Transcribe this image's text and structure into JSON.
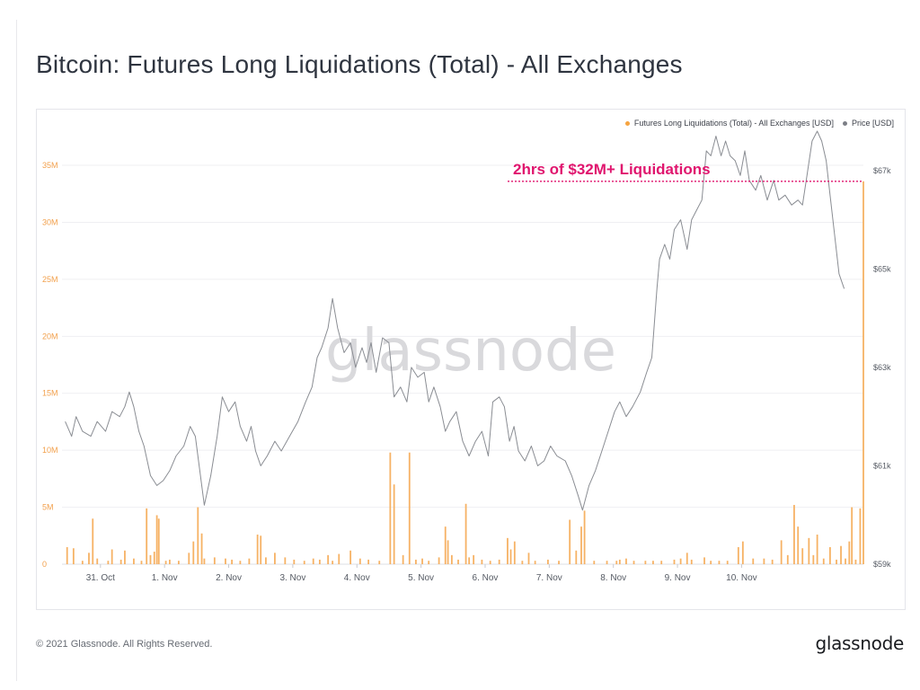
{
  "title": "Bitcoin: Futures Long Liquidations (Total) - All Exchanges",
  "footer": {
    "copyright": "© 2021 Glassnode. All Rights Reserved.",
    "logo": "glassnode"
  },
  "watermark": "glassnode",
  "colors": {
    "bars": "#f6b265",
    "price_line": "#8a8d93",
    "annotation": "#e0156e",
    "legend_liq": "#f6a441",
    "legend_price": "#7c7f86"
  },
  "chart_data": {
    "type": "bar",
    "legend": [
      {
        "name": "Futures Long Liquidations (Total) - All Exchanges [USD]",
        "color": "#f6a441"
      },
      {
        "name": "Price [USD]",
        "color": "#7c7f86"
      }
    ],
    "legend_position": "top-right",
    "annotation": {
      "text": "2hrs of $32M+ Liquidations",
      "value": 33600000
    },
    "x_ticks": [
      "31. Oct",
      "1. Nov",
      "2. Nov",
      "3. Nov",
      "4. Nov",
      "5. Nov",
      "6. Nov",
      "7. Nov",
      "8. Nov",
      "9. Nov",
      "10. Nov"
    ],
    "x_range_days": [
      -1.6,
      10.9
    ],
    "y_left": {
      "ticks": [
        "0",
        "5M",
        "10M",
        "15M",
        "20M",
        "25M",
        "30M",
        "35M"
      ],
      "range": [
        0,
        38000000
      ]
    },
    "y_right": {
      "ticks": [
        "$59k",
        "$61k",
        "$63k",
        "$65k",
        "$67k"
      ],
      "range": [
        59000,
        67800
      ]
    },
    "grid": true,
    "series": [
      {
        "name": "Futures Long Liquidations (Total) - All Exchanges [USD]",
        "type": "bar",
        "points": [
          [
            -1.52,
            1.5
          ],
          [
            -1.42,
            1.4
          ],
          [
            -1.28,
            0.3
          ],
          [
            -1.18,
            1.0
          ],
          [
            -1.12,
            4.0
          ],
          [
            -1.05,
            0.5
          ],
          [
            -0.88,
            0.3
          ],
          [
            -0.82,
            1.3
          ],
          [
            -0.68,
            0.4
          ],
          [
            -0.62,
            1.2
          ],
          [
            -0.48,
            0.5
          ],
          [
            -0.36,
            0.3
          ],
          [
            -0.28,
            4.9
          ],
          [
            -0.22,
            0.8
          ],
          [
            -0.16,
            1.1
          ],
          [
            -0.12,
            4.3
          ],
          [
            -0.09,
            4.0
          ],
          [
            0.02,
            0.3
          ],
          [
            0.08,
            0.4
          ],
          [
            0.22,
            0.3
          ],
          [
            0.38,
            1.0
          ],
          [
            0.45,
            2.0
          ],
          [
            0.52,
            5.0
          ],
          [
            0.58,
            2.7
          ],
          [
            0.62,
            0.5
          ],
          [
            0.78,
            0.6
          ],
          [
            0.95,
            0.5
          ],
          [
            1.05,
            0.4
          ],
          [
            1.18,
            0.3
          ],
          [
            1.32,
            0.5
          ],
          [
            1.45,
            2.6
          ],
          [
            1.5,
            2.5
          ],
          [
            1.58,
            0.6
          ],
          [
            1.72,
            1.0
          ],
          [
            1.88,
            0.6
          ],
          [
            2.02,
            0.4
          ],
          [
            2.18,
            0.3
          ],
          [
            2.32,
            0.5
          ],
          [
            2.42,
            0.4
          ],
          [
            2.55,
            0.8
          ],
          [
            2.62,
            0.3
          ],
          [
            2.72,
            0.9
          ],
          [
            2.9,
            1.2
          ],
          [
            3.05,
            0.5
          ],
          [
            3.18,
            0.4
          ],
          [
            3.35,
            0.3
          ],
          [
            3.52,
            9.8
          ],
          [
            3.58,
            7.0
          ],
          [
            3.72,
            0.8
          ],
          [
            3.82,
            9.8
          ],
          [
            3.92,
            0.4
          ],
          [
            4.02,
            0.5
          ],
          [
            4.12,
            0.3
          ],
          [
            4.28,
            0.6
          ],
          [
            4.38,
            3.3
          ],
          [
            4.42,
            2.1
          ],
          [
            4.48,
            0.8
          ],
          [
            4.58,
            0.4
          ],
          [
            4.7,
            5.3
          ],
          [
            4.75,
            0.6
          ],
          [
            4.82,
            0.8
          ],
          [
            4.95,
            0.4
          ],
          [
            5.08,
            0.3
          ],
          [
            5.22,
            0.4
          ],
          [
            5.35,
            2.3
          ],
          [
            5.4,
            1.3
          ],
          [
            5.46,
            2.0
          ],
          [
            5.58,
            0.3
          ],
          [
            5.68,
            1.0
          ],
          [
            5.78,
            0.3
          ],
          [
            5.98,
            0.4
          ],
          [
            6.15,
            0.3
          ],
          [
            6.32,
            3.9
          ],
          [
            6.42,
            1.2
          ],
          [
            6.5,
            3.3
          ],
          [
            6.55,
            4.7
          ],
          [
            6.7,
            0.3
          ],
          [
            6.9,
            0.3
          ],
          [
            7.05,
            0.3
          ],
          [
            7.1,
            0.4
          ],
          [
            7.2,
            0.5
          ],
          [
            7.32,
            0.3
          ],
          [
            7.5,
            0.3
          ],
          [
            7.62,
            0.3
          ],
          [
            7.75,
            0.3
          ],
          [
            7.95,
            0.4
          ],
          [
            8.05,
            0.5
          ],
          [
            8.15,
            1.0
          ],
          [
            8.22,
            0.4
          ],
          [
            8.42,
            0.6
          ],
          [
            8.52,
            0.3
          ],
          [
            8.65,
            0.3
          ],
          [
            8.78,
            0.3
          ],
          [
            8.95,
            1.5
          ],
          [
            9.02,
            2.0
          ],
          [
            9.18,
            0.5
          ],
          [
            9.35,
            0.5
          ],
          [
            9.48,
            0.4
          ],
          [
            9.62,
            2.1
          ],
          [
            9.72,
            0.8
          ],
          [
            9.82,
            5.2
          ],
          [
            9.88,
            3.3
          ],
          [
            9.95,
            1.4
          ],
          [
            10.05,
            2.3
          ],
          [
            10.12,
            0.8
          ],
          [
            10.18,
            2.6
          ],
          [
            10.28,
            0.5
          ],
          [
            10.38,
            1.5
          ],
          [
            10.48,
            0.4
          ],
          [
            10.55,
            1.6
          ],
          [
            10.62,
            0.5
          ],
          [
            10.68,
            2.0
          ],
          [
            10.72,
            5.0
          ],
          [
            10.78,
            0.4
          ],
          [
            10.85,
            4.9
          ],
          [
            10.9,
            33.6
          ]
        ]
      },
      {
        "name": "Price [USD]",
        "type": "line",
        "points": [
          [
            -1.55,
            61.9
          ],
          [
            -1.45,
            61.6
          ],
          [
            -1.38,
            62.0
          ],
          [
            -1.28,
            61.7
          ],
          [
            -1.15,
            61.6
          ],
          [
            -1.05,
            61.9
          ],
          [
            -0.92,
            61.7
          ],
          [
            -0.82,
            62.1
          ],
          [
            -0.7,
            62.0
          ],
          [
            -0.62,
            62.2
          ],
          [
            -0.55,
            62.5
          ],
          [
            -0.48,
            62.2
          ],
          [
            -0.4,
            61.7
          ],
          [
            -0.32,
            61.4
          ],
          [
            -0.22,
            60.8
          ],
          [
            -0.12,
            60.6
          ],
          [
            -0.02,
            60.7
          ],
          [
            0.08,
            60.9
          ],
          [
            0.18,
            61.2
          ],
          [
            0.3,
            61.4
          ],
          [
            0.4,
            61.8
          ],
          [
            0.48,
            61.6
          ],
          [
            0.55,
            60.9
          ],
          [
            0.62,
            60.2
          ],
          [
            0.72,
            60.8
          ],
          [
            0.82,
            61.6
          ],
          [
            0.9,
            62.4
          ],
          [
            1.0,
            62.1
          ],
          [
            1.1,
            62.3
          ],
          [
            1.18,
            61.8
          ],
          [
            1.28,
            61.5
          ],
          [
            1.35,
            61.8
          ],
          [
            1.42,
            61.3
          ],
          [
            1.5,
            61.0
          ],
          [
            1.6,
            61.2
          ],
          [
            1.72,
            61.5
          ],
          [
            1.82,
            61.3
          ],
          [
            1.95,
            61.6
          ],
          [
            2.08,
            61.9
          ],
          [
            2.2,
            62.3
          ],
          [
            2.3,
            62.6
          ],
          [
            2.38,
            63.2
          ],
          [
            2.45,
            63.4
          ],
          [
            2.55,
            63.8
          ],
          [
            2.62,
            64.4
          ],
          [
            2.7,
            63.8
          ],
          [
            2.8,
            63.3
          ],
          [
            2.9,
            63.5
          ],
          [
            2.98,
            63.0
          ],
          [
            3.08,
            63.4
          ],
          [
            3.15,
            63.1
          ],
          [
            3.22,
            63.5
          ],
          [
            3.3,
            62.9
          ],
          [
            3.4,
            63.6
          ],
          [
            3.5,
            63.5
          ],
          [
            3.58,
            62.4
          ],
          [
            3.68,
            62.6
          ],
          [
            3.78,
            62.3
          ],
          [
            3.85,
            63.0
          ],
          [
            3.95,
            62.8
          ],
          [
            4.05,
            62.9
          ],
          [
            4.12,
            62.3
          ],
          [
            4.2,
            62.6
          ],
          [
            4.3,
            62.2
          ],
          [
            4.38,
            61.7
          ],
          [
            4.45,
            61.9
          ],
          [
            4.55,
            62.1
          ],
          [
            4.65,
            61.5
          ],
          [
            4.75,
            61.2
          ],
          [
            4.85,
            61.5
          ],
          [
            4.95,
            61.7
          ],
          [
            5.05,
            61.2
          ],
          [
            5.12,
            62.3
          ],
          [
            5.22,
            62.4
          ],
          [
            5.3,
            62.2
          ],
          [
            5.38,
            61.5
          ],
          [
            5.45,
            61.8
          ],
          [
            5.52,
            61.3
          ],
          [
            5.62,
            61.1
          ],
          [
            5.72,
            61.4
          ],
          [
            5.82,
            61.0
          ],
          [
            5.92,
            61.1
          ],
          [
            6.02,
            61.4
          ],
          [
            6.12,
            61.2
          ],
          [
            6.25,
            61.1
          ],
          [
            6.35,
            60.8
          ],
          [
            6.45,
            60.4
          ],
          [
            6.52,
            60.1
          ],
          [
            6.62,
            60.6
          ],
          [
            6.72,
            60.9
          ],
          [
            6.82,
            61.3
          ],
          [
            6.92,
            61.7
          ],
          [
            7.02,
            62.1
          ],
          [
            7.1,
            62.3
          ],
          [
            7.2,
            62.0
          ],
          [
            7.3,
            62.2
          ],
          [
            7.42,
            62.5
          ],
          [
            7.52,
            62.9
          ],
          [
            7.6,
            63.2
          ],
          [
            7.68,
            64.6
          ],
          [
            7.72,
            65.2
          ],
          [
            7.8,
            65.5
          ],
          [
            7.88,
            65.2
          ],
          [
            7.95,
            65.8
          ],
          [
            8.05,
            66.0
          ],
          [
            8.15,
            65.4
          ],
          [
            8.22,
            66.0
          ],
          [
            8.3,
            66.2
          ],
          [
            8.38,
            66.4
          ],
          [
            8.45,
            67.4
          ],
          [
            8.52,
            67.3
          ],
          [
            8.6,
            67.7
          ],
          [
            8.68,
            67.3
          ],
          [
            8.75,
            67.6
          ],
          [
            8.82,
            67.3
          ],
          [
            8.9,
            67.2
          ],
          [
            8.98,
            66.9
          ],
          [
            9.05,
            67.4
          ],
          [
            9.12,
            66.8
          ],
          [
            9.22,
            66.6
          ],
          [
            9.3,
            66.9
          ],
          [
            9.4,
            66.4
          ],
          [
            9.5,
            66.8
          ],
          [
            9.58,
            66.4
          ],
          [
            9.68,
            66.5
          ],
          [
            9.78,
            66.3
          ],
          [
            9.88,
            66.4
          ],
          [
            9.95,
            66.3
          ],
          [
            10.02,
            66.9
          ],
          [
            10.1,
            67.6
          ],
          [
            10.18,
            67.8
          ],
          [
            10.25,
            67.6
          ],
          [
            10.32,
            67.2
          ],
          [
            10.38,
            66.5
          ],
          [
            10.45,
            65.7
          ],
          [
            10.52,
            64.9
          ],
          [
            10.6,
            64.6
          ]
        ]
      }
    ]
  }
}
